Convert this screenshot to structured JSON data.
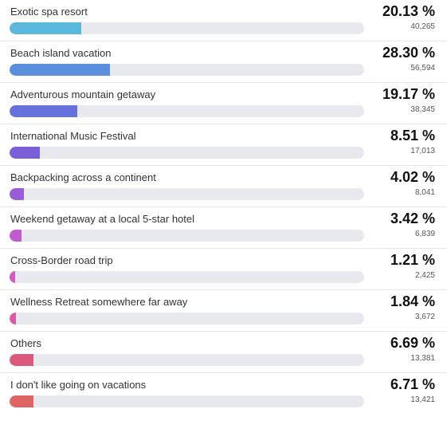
{
  "results": [
    {
      "label": "Exotic spa resort",
      "percent": "20.13 %",
      "count": "40,265",
      "value": 20.13,
      "color": "#5bb8dc"
    },
    {
      "label": "Beach island vacation",
      "percent": "28.30 %",
      "count": "56,594",
      "value": 28.3,
      "color": "#5b8fdb"
    },
    {
      "label": "Adventurous mountain getaway",
      "percent": "19.17 %",
      "count": "38,345",
      "value": 19.17,
      "color": "#6771db"
    },
    {
      "label": "International Music Festival",
      "percent": "8.51 %",
      "count": "17,013",
      "value": 8.51,
      "color": "#7c5fd8"
    },
    {
      "label": "Backpacking across a continent",
      "percent": "4.02 %",
      "count": "8,041",
      "value": 4.02,
      "color": "#9a5cd6"
    },
    {
      "label": "Weekend getaway at a local 5-star hotel",
      "percent": "3.42 %",
      "count": "6,839",
      "value": 3.42,
      "color": "#c25ad0"
    },
    {
      "label": "Cross-Border road trip",
      "percent": "1.21 %",
      "count": "2,425",
      "value": 1.21,
      "color": "#d25ac2"
    },
    {
      "label": "Wellness Retreat somewhere far away",
      "percent": "1.84 %",
      "count": "3,672",
      "value": 1.84,
      "color": "#d85ba6"
    },
    {
      "label": "Others",
      "percent": "6.69 %",
      "count": "13,381",
      "value": 6.69,
      "color": "#da5a7e"
    },
    {
      "label": "I don't like going on vacations",
      "percent": "6.71 %",
      "count": "13,421",
      "value": 6.71,
      "color": "#df6565"
    }
  ]
}
